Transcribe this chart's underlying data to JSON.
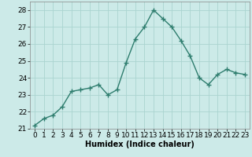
{
  "x": [
    0,
    1,
    2,
    3,
    4,
    5,
    6,
    7,
    8,
    9,
    10,
    11,
    12,
    13,
    14,
    15,
    16,
    17,
    18,
    19,
    20,
    21,
    22,
    23
  ],
  "y": [
    21.2,
    21.6,
    21.8,
    22.3,
    23.2,
    23.3,
    23.4,
    23.6,
    23.0,
    23.3,
    24.9,
    26.3,
    27.0,
    28.0,
    27.5,
    27.0,
    26.2,
    25.3,
    24.0,
    23.6,
    24.2,
    24.5,
    24.3,
    24.2
  ],
  "line_color": "#2e7d6e",
  "marker": "+",
  "marker_size": 4,
  "bg_color": "#cceae8",
  "grid_color": "#aad4d0",
  "xlabel": "Humidex (Indice chaleur)",
  "ylim": [
    21,
    28.5
  ],
  "yticks": [
    21,
    22,
    23,
    24,
    25,
    26,
    27,
    28
  ],
  "xticks": [
    0,
    1,
    2,
    3,
    4,
    5,
    6,
    7,
    8,
    9,
    10,
    11,
    12,
    13,
    14,
    15,
    16,
    17,
    18,
    19,
    20,
    21,
    22,
    23
  ],
  "xlabel_fontsize": 7,
  "tick_fontsize": 6.5,
  "line_width": 1.0
}
